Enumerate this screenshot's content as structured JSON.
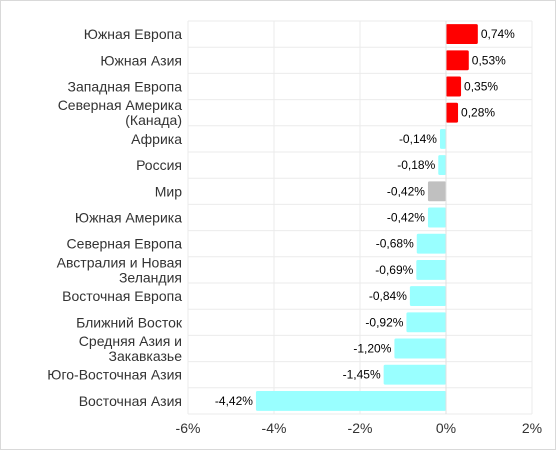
{
  "chart_data": {
    "type": "bar",
    "orientation": "horizontal",
    "categories": [
      "Южная Европа",
      "Южная Азия",
      "Западная Европа",
      "Северная Америка (Канада)",
      "Африка",
      "Россия",
      "Мир",
      "Южная Америка",
      "Северная Европа",
      "Австралия и Новая Зеландия",
      "Восточная Европа",
      "Ближний Восток",
      "Средняя Азия и Закавказье",
      "Юго-Восточная Азия",
      "Восточная Азия"
    ],
    "category_lines": [
      [
        "Южная Европа"
      ],
      [
        "Южная Азия"
      ],
      [
        "Западная Европа"
      ],
      [
        "Северная Америка",
        "(Канада)"
      ],
      [
        "Африка"
      ],
      [
        "Россия"
      ],
      [
        "Мир"
      ],
      [
        "Южная Америка"
      ],
      [
        "Северная Европа"
      ],
      [
        "Австралия и Новая",
        "Зеландия"
      ],
      [
        "Восточная Европа"
      ],
      [
        "Ближний Восток"
      ],
      [
        "Средняя Азия и",
        "Закавказье"
      ],
      [
        "Юго-Восточная Азия"
      ],
      [
        "Восточная Азия"
      ]
    ],
    "values": [
      0.74,
      0.53,
      0.35,
      0.28,
      -0.14,
      -0.18,
      -0.42,
      -0.42,
      -0.68,
      -0.69,
      -0.84,
      -0.92,
      -1.2,
      -1.45,
      -4.42
    ],
    "value_labels": [
      "0,74%",
      "0,53%",
      "0,35%",
      "0,28%",
      "-0,14%",
      "-0,18%",
      "-0,42%",
      "-0,42%",
      "-0,68%",
      "-0,69%",
      "-0,84%",
      "-0,92%",
      "-1,20%",
      "-1,45%",
      "-4,42%"
    ],
    "xlim": [
      -6,
      2
    ],
    "x_ticks": [
      -6,
      -4,
      -2,
      0,
      2
    ],
    "x_tick_labels": [
      "-6%",
      "-4%",
      "-2%",
      "0%",
      "2%"
    ],
    "grid": true,
    "colors": {
      "positive": "#ff0000",
      "negative": "#99ffff",
      "highlight": "#c0c0c0",
      "grid": "#ebebeb",
      "axis": "#444444",
      "text": "#333333"
    },
    "highlight_category": "Мир",
    "title": "",
    "xlabel": "",
    "ylabel": ""
  }
}
